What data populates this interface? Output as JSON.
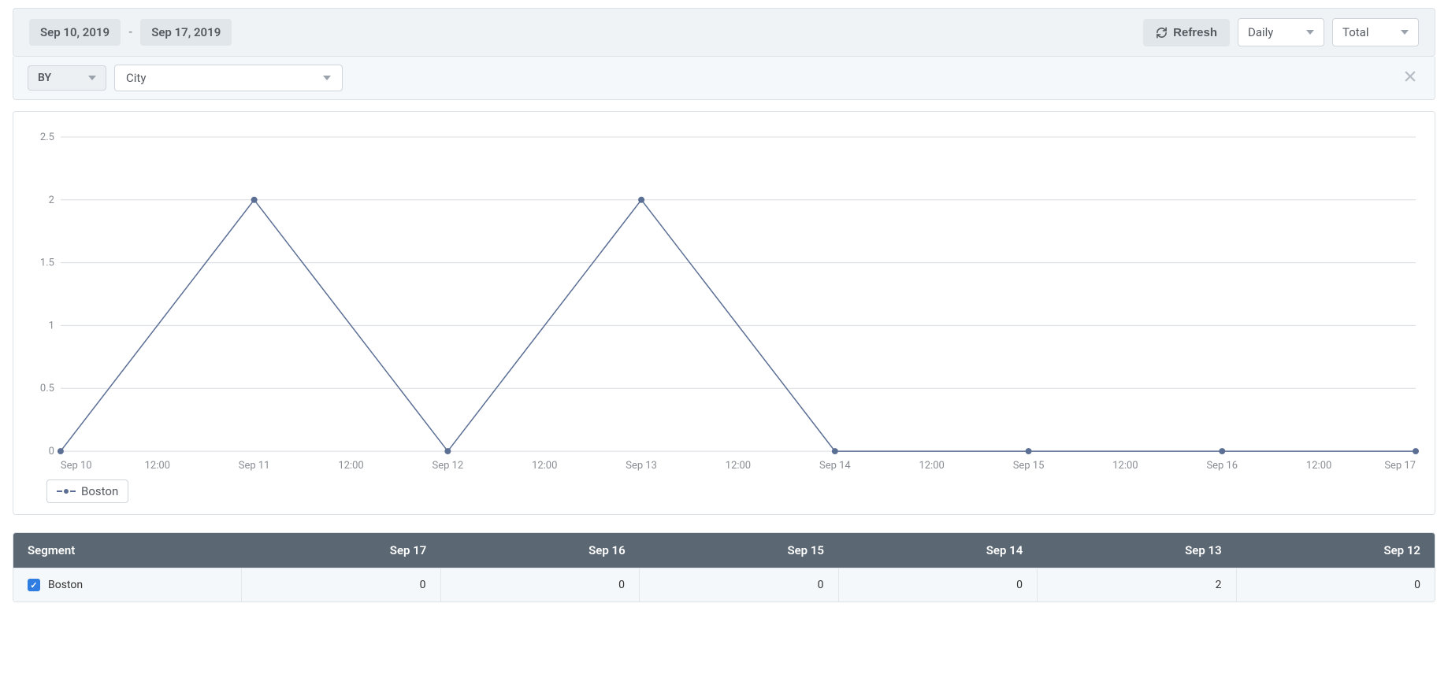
{
  "toolbar": {
    "date_from": "Sep 10, 2019",
    "date_sep": "-",
    "date_to": "Sep 17, 2019",
    "refresh_label": "Refresh",
    "interval_selected": "Daily",
    "aggregation_selected": "Total"
  },
  "filter": {
    "by_label": "BY",
    "dimension_selected": "City"
  },
  "chart": {
    "type": "line",
    "ylim": [
      0,
      2.5
    ],
    "ytick_step": 0.5,
    "ytick_labels": [
      "0",
      "0.5",
      "1",
      "1.5",
      "2",
      "2.5"
    ],
    "x_labels": [
      "Sep 10",
      "12:00",
      "Sep 11",
      "12:00",
      "Sep 12",
      "12:00",
      "Sep 13",
      "12:00",
      "Sep 14",
      "12:00",
      "Sep 15",
      "12:00",
      "Sep 16",
      "12:00",
      "Sep 17"
    ],
    "series": [
      {
        "name": "Boston",
        "color": "#5b6e94",
        "marker": "circle",
        "marker_size": 4,
        "line_width": 1.5,
        "values": [
          0,
          2,
          0,
          2,
          0,
          0,
          0,
          0
        ],
        "value_labels": [
          "Sep 10",
          "Sep 11",
          "Sep 12",
          "Sep 13",
          "Sep 14",
          "Sep 15",
          "Sep 16",
          "Sep 17"
        ]
      }
    ],
    "grid_color": "#d9dde2",
    "axis_text_color": "#888d94",
    "axis_fontsize": 13,
    "background_color": "#ffffff",
    "legend_label": "Boston"
  },
  "table": {
    "columns": [
      "Segment",
      "Sep 17",
      "Sep 16",
      "Sep 15",
      "Sep 14",
      "Sep 13",
      "Sep 12"
    ],
    "header_bg": "#5b6772",
    "header_text_color": "#ffffff",
    "row_bg": "#f5f8fa",
    "rows": [
      {
        "segment": "Boston",
        "checked": true,
        "values": [
          "0",
          "0",
          "0",
          "0",
          "2",
          "0"
        ]
      }
    ]
  }
}
